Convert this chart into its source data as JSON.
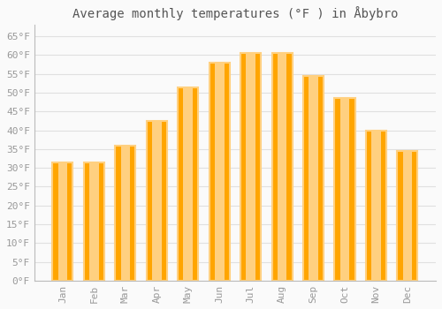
{
  "title": "Average monthly temperatures (°F ) in Åbybro",
  "months": [
    "Jan",
    "Feb",
    "Mar",
    "Apr",
    "May",
    "Jun",
    "Jul",
    "Aug",
    "Sep",
    "Oct",
    "Nov",
    "Dec"
  ],
  "values": [
    31.5,
    31.5,
    36.0,
    42.5,
    51.5,
    58.0,
    60.5,
    60.5,
    54.5,
    48.5,
    40.0,
    34.5
  ],
  "bar_color_face": "#FFA500",
  "bar_color_edge": "#FFD080",
  "background_color": "#FAFAFA",
  "grid_color": "#E0E0E0",
  "ylim": [
    0,
    68
  ],
  "yticks": [
    0,
    5,
    10,
    15,
    20,
    25,
    30,
    35,
    40,
    45,
    50,
    55,
    60,
    65
  ],
  "title_fontsize": 10,
  "tick_fontsize": 8,
  "tick_label_color": "#999999",
  "font_family": "monospace",
  "title_color": "#555555"
}
